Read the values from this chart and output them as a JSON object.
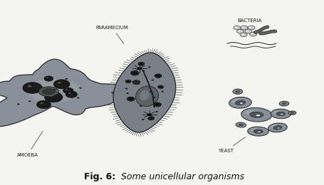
{
  "title": "Fig. 6:",
  "title_italic": " Some unicellular organisms",
  "background_color": "#f5f5f0",
  "fig_width": 4.56,
  "fig_height": 2.6,
  "dpi": 100,
  "labels": {
    "paramecium": "PARAMECIUM",
    "amoeba": "AMOEBA",
    "bacteria": "BACTERIA",
    "yeast": "YEAST"
  },
  "caption_fontsize": 9,
  "label_fontsize": 5.0,
  "amoeba_color": "#8a9099",
  "amoeba_edge": "#2a2a2a",
  "paramecium_color": "#7a8088",
  "paramecium_edge": "#252525",
  "yeast_color": "#8a9099",
  "yeast_edge": "#252525",
  "bacteria_cocci_color": "#c8ccc8",
  "bacteria_edge": "#404040"
}
